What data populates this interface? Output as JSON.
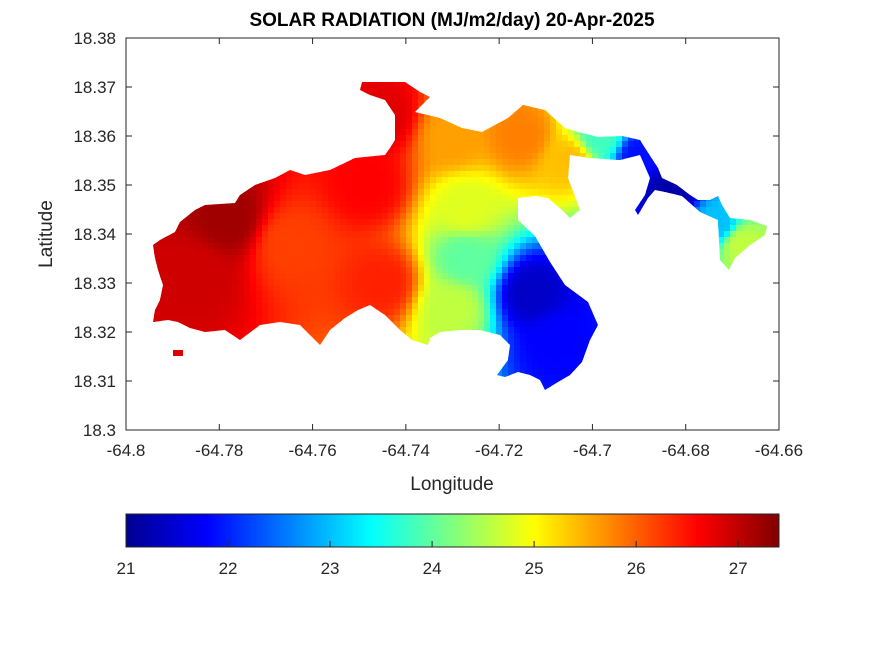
{
  "chart_data": {
    "type": "heatmap",
    "title": "SOLAR RADIATION (MJ/m2/day) 20-Apr-2025",
    "xlabel": "Longitude",
    "ylabel": "Latitude",
    "xlim": [
      -64.8,
      -64.66
    ],
    "ylim": [
      18.3,
      18.38
    ],
    "xticks": [
      "-64.8",
      "-64.78",
      "-64.76",
      "-64.74",
      "-64.72",
      "-64.7",
      "-64.68",
      "-64.66"
    ],
    "yticks": [
      "18.3",
      "18.31",
      "18.32",
      "18.33",
      "18.34",
      "18.35",
      "18.36",
      "18.37",
      "18.38"
    ],
    "colorbar": {
      "colormap": "jet",
      "range": [
        21,
        27.4
      ],
      "ticks": [
        "21",
        "22",
        "23",
        "24",
        "25",
        "26",
        "27"
      ],
      "orientation": "horizontal",
      "placement": "bottom"
    },
    "approx_values": [
      {
        "lon": -64.785,
        "lat": 18.332,
        "value": 26.9
      },
      {
        "lon": -64.778,
        "lat": 18.343,
        "value": 27.2
      },
      {
        "lon": -64.765,
        "lat": 18.338,
        "value": 26.2
      },
      {
        "lon": -64.748,
        "lat": 18.35,
        "value": 26.6
      },
      {
        "lon": -64.745,
        "lat": 18.364,
        "value": 26.8
      },
      {
        "lon": -64.745,
        "lat": 18.33,
        "value": 26.4
      },
      {
        "lon": -64.73,
        "lat": 18.36,
        "value": 25.6
      },
      {
        "lon": -64.727,
        "lat": 18.345,
        "value": 24.8
      },
      {
        "lon": -64.727,
        "lat": 18.335,
        "value": 24.0
      },
      {
        "lon": -64.73,
        "lat": 18.325,
        "value": 24.6
      },
      {
        "lon": -64.715,
        "lat": 18.36,
        "value": 25.8
      },
      {
        "lon": -64.705,
        "lat": 18.355,
        "value": 25.4
      },
      {
        "lon": -64.713,
        "lat": 18.328,
        "value": 21.4
      },
      {
        "lon": -64.708,
        "lat": 18.318,
        "value": 21.8
      },
      {
        "lon": -64.698,
        "lat": 18.36,
        "value": 23.8
      },
      {
        "lon": -64.69,
        "lat": 18.356,
        "value": 21.9
      },
      {
        "lon": -64.683,
        "lat": 18.349,
        "value": 21.2
      },
      {
        "lon": -64.673,
        "lat": 18.342,
        "value": 23.0
      },
      {
        "lon": -64.668,
        "lat": 18.338,
        "value": 24.6
      }
    ]
  }
}
